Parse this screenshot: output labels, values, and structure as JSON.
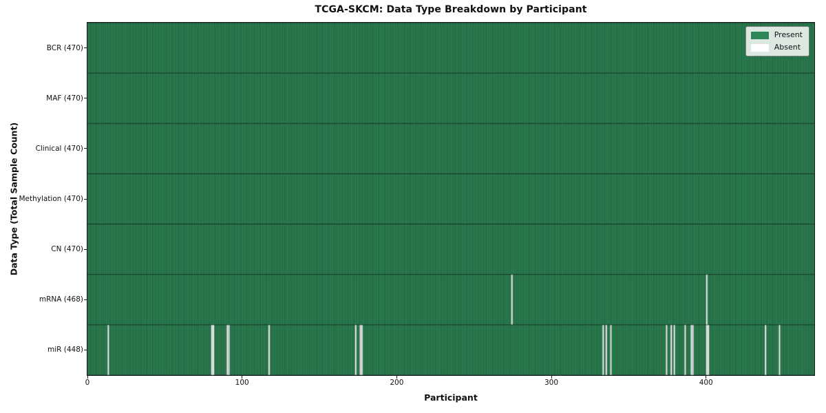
{
  "chart_data": {
    "type": "heatmap",
    "title": "TCGA-SKCM: Data Type Breakdown by Participant",
    "xlabel": "Participant",
    "ylabel": "Data Type (Total Sample Count)",
    "n_participants": 470,
    "x_range": [
      0,
      470
    ],
    "xticks": [
      0,
      100,
      200,
      300,
      400
    ],
    "grid": false,
    "legend": {
      "position": "upper right",
      "entries": [
        {
          "label": "Present",
          "color": "#2f8757"
        },
        {
          "label": "Absent",
          "color": "#ffffff"
        }
      ]
    },
    "rows": [
      {
        "label": "BCR (470)",
        "data_type": "BCR",
        "present_count": 470,
        "absent_participants": []
      },
      {
        "label": "MAF (470)",
        "data_type": "MAF",
        "present_count": 470,
        "absent_participants": []
      },
      {
        "label": "Clinical (470)",
        "data_type": "Clinical",
        "present_count": 470,
        "absent_participants": []
      },
      {
        "label": "Methylation (470)",
        "data_type": "Methylation",
        "present_count": 470,
        "absent_participants": []
      },
      {
        "label": "CN (470)",
        "data_type": "CN",
        "present_count": 470,
        "absent_participants": []
      },
      {
        "label": "mRNA (468)",
        "data_type": "mRNA",
        "present_count": 468,
        "absent_participants": [
          274,
          400
        ]
      },
      {
        "label": "miR (448)",
        "data_type": "miR",
        "present_count": 448,
        "absent_participants": [
          13,
          80,
          81,
          90,
          91,
          117,
          173,
          176,
          177,
          333,
          335,
          338,
          374,
          377,
          379,
          386,
          390,
          391,
          400,
          401,
          438,
          447
        ]
      }
    ],
    "colors": {
      "present": "#2f8757",
      "absent": "#ffffff",
      "cell_edge": "rgba(0,0,0,0.45)",
      "row_edge": "rgba(0,0,0,0.6)",
      "spine": "#1a1a1a"
    }
  }
}
